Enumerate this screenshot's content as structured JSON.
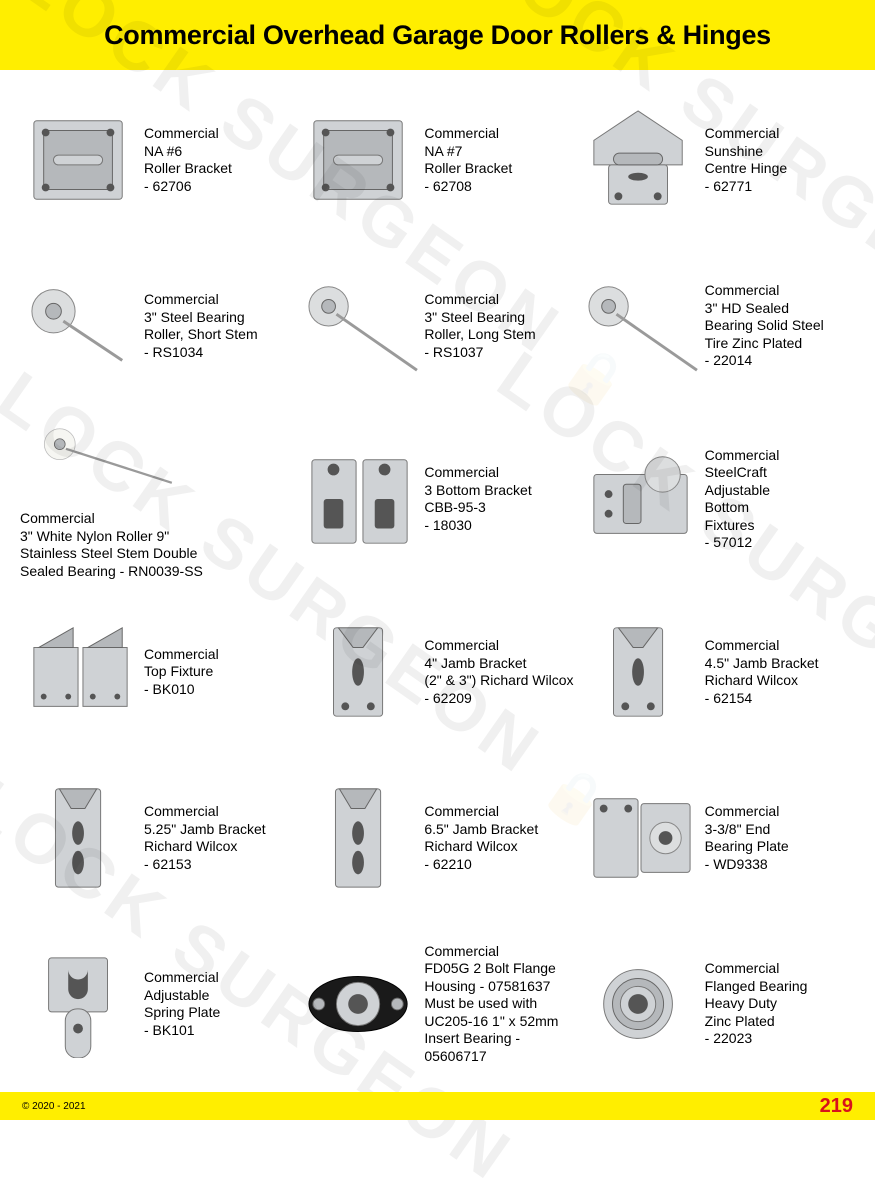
{
  "page": {
    "title": "Commercial Overhead Garage Door Rollers & Hinges",
    "copyright": "© 2020 - 2021",
    "page_number": "219",
    "header_bg": "#ffee00",
    "pagenum_color": "#d8121b",
    "watermark_text": "LOCK SURGEON"
  },
  "products": [
    {
      "id": "p01",
      "lines": "Commercial\nNA #6\nRoller Bracket\n- 62706",
      "shape": "bracket-square"
    },
    {
      "id": "p02",
      "lines": "Commercial\nNA #7\nRoller Bracket\n- 62708",
      "shape": "bracket-square"
    },
    {
      "id": "p03",
      "lines": "Commercial\nSunshine\nCentre Hinge\n- 62771",
      "shape": "centre-hinge"
    },
    {
      "id": "p04",
      "lines": "Commercial\n3\" Steel Bearing\nRoller, Short Stem\n- RS1034",
      "shape": "roller-short"
    },
    {
      "id": "p05",
      "lines": "Commercial\n3\" Steel Bearing\nRoller, Long Stem\n- RS1037",
      "shape": "roller-long"
    },
    {
      "id": "p06",
      "lines": "Commercial\n3\" HD Sealed\nBearing Solid Steel\nTire Zinc Plated\n- 22014",
      "shape": "roller-long"
    },
    {
      "id": "p07",
      "lines": "Commercial\n3\" White Nylon Roller 9\"\nStainless Steel Stem Double\nSealed Bearing - RN0039-SS",
      "shape": "roller-nylon",
      "stacked": true
    },
    {
      "id": "p08",
      "lines": "Commercial\n3 Bottom Bracket\nCBB-95-3\n- 18030",
      "shape": "bottom-bracket-pair"
    },
    {
      "id": "p09",
      "lines": "Commercial\nSteelCraft\nAdjustable\nBottom\nFixtures\n- 57012",
      "shape": "adj-bottom-fixture"
    },
    {
      "id": "p10",
      "lines": "Commercial\nTop Fixture\n- BK010",
      "shape": "top-fixture-pair"
    },
    {
      "id": "p11",
      "lines": "Commercial\n4\" Jamb Bracket\n(2\" & 3\") Richard Wilcox\n- 62209",
      "shape": "jamb-bracket"
    },
    {
      "id": "p12",
      "lines": "Commercial\n4.5\" Jamb Bracket\nRichard Wilcox\n- 62154",
      "shape": "jamb-bracket"
    },
    {
      "id": "p13",
      "lines": "Commercial\n5.25\" Jamb Bracket\nRichard Wilcox\n- 62153",
      "shape": "jamb-bracket-tall"
    },
    {
      "id": "p14",
      "lines": "Commercial\n6.5\" Jamb Bracket\nRichard Wilcox\n- 62210",
      "shape": "jamb-bracket-tall"
    },
    {
      "id": "p15",
      "lines": "Commercial\n3-3/8\" End\nBearing Plate\n- WD9338",
      "shape": "end-bearing-plate"
    },
    {
      "id": "p16",
      "lines": "Commercial\nAdjustable\nSpring Plate\n- BK101",
      "shape": "spring-plate"
    },
    {
      "id": "p17",
      "lines": "Commercial\nFD05G 2 Bolt Flange\nHousing - 07581637\nMust be used with\nUC205-16 1\" x 52mm\nInsert Bearing - 05606717",
      "shape": "flange-housing"
    },
    {
      "id": "p18",
      "lines": "Commercial\nFlanged Bearing\nHeavy Duty\nZinc Plated\n- 22023",
      "shape": "flanged-bearing"
    }
  ]
}
